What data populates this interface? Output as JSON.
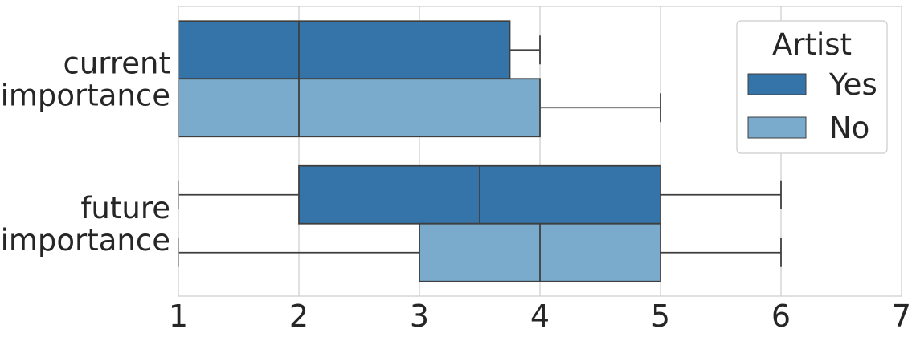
{
  "chart_data": {
    "type": "boxplot",
    "orientation": "horizontal",
    "categories": [
      "current\nimportance",
      "future\nimportance"
    ],
    "xlim": [
      1,
      7
    ],
    "xticks": [
      1,
      2,
      3,
      4,
      5,
      6,
      7
    ],
    "grid": true,
    "legend": {
      "title": "Artist",
      "placement": "top-right",
      "entries": [
        "Yes",
        "No"
      ]
    },
    "series": [
      {
        "name": "Yes",
        "color": "#3574a8",
        "boxes": [
          {
            "category": "current\nimportance",
            "whisker_low": 1,
            "q1": 1,
            "median": 2,
            "q3": 3.75,
            "whisker_high": 4
          },
          {
            "category": "future\nimportance",
            "whisker_low": 1,
            "q1": 2,
            "median": 3.5,
            "q3": 5,
            "whisker_high": 6
          }
        ]
      },
      {
        "name": "No",
        "color": "#7aabcc",
        "boxes": [
          {
            "category": "current\nimportance",
            "whisker_low": 1,
            "q1": 1,
            "median": 2,
            "q3": 4,
            "whisker_high": 5
          },
          {
            "category": "future\nimportance",
            "whisker_low": 1,
            "q1": 3,
            "median": 4,
            "q3": 5,
            "whisker_high": 6
          }
        ]
      }
    ]
  }
}
